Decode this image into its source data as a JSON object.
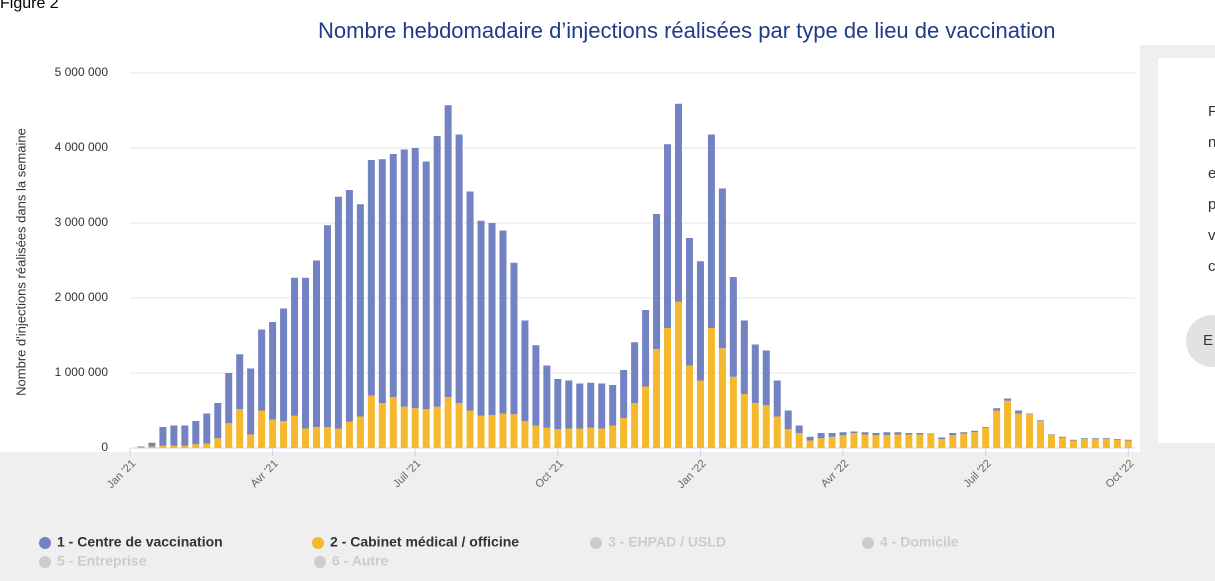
{
  "figure_label": "Figure 2",
  "chart_data": {
    "type": "stacked_bar",
    "title": "Nombre hebdomadaire d’injections réalisées par type de lieu de vaccination",
    "y_label": "Nombre d'injections réalisées dans la semaine",
    "categories": [
      "Jan '21",
      null,
      null,
      null,
      null,
      null,
      null,
      null,
      null,
      null,
      null,
      null,
      null,
      "Avr '21",
      null,
      null,
      null,
      null,
      null,
      null,
      null,
      null,
      null,
      null,
      null,
      null,
      "Juil '21",
      null,
      null,
      null,
      null,
      null,
      null,
      null,
      null,
      null,
      null,
      null,
      null,
      "Oct '21",
      null,
      null,
      null,
      null,
      null,
      null,
      null,
      null,
      null,
      null,
      null,
      null,
      "Jan '22",
      null,
      null,
      null,
      null,
      null,
      null,
      null,
      null,
      null,
      null,
      null,
      null,
      "Avr '22",
      null,
      null,
      null,
      null,
      null,
      null,
      null,
      null,
      null,
      null,
      null,
      null,
      "Juil '22",
      null,
      null,
      null,
      null,
      null,
      null,
      null,
      null,
      null,
      null,
      null,
      null,
      "Oct '22"
    ],
    "series": [
      {
        "name": "1 - Centre de vaccination",
        "color": "#7282c2",
        "values": [
          0,
          10000,
          50000,
          250000,
          270000,
          270000,
          310000,
          400000,
          470000,
          670000,
          730000,
          880000,
          1080000,
          1300000,
          1500000,
          1840000,
          2010000,
          2220000,
          2690000,
          3090000,
          3090000,
          2830000,
          3140000,
          3250000,
          3240000,
          3430000,
          3470000,
          3300000,
          3610000,
          3890000,
          3580000,
          2920000,
          2600000,
          2560000,
          2440000,
          2020000,
          1340000,
          1070000,
          830000,
          670000,
          640000,
          600000,
          600000,
          600000,
          540000,
          640000,
          810000,
          1020000,
          1800000,
          2450000,
          2640000,
          1700000,
          1590000,
          2580000,
          2130000,
          1330000,
          980000,
          780000,
          730000,
          480000,
          250000,
          100000,
          50000,
          70000,
          50000,
          40000,
          20000,
          30000,
          30000,
          40000,
          30000,
          20000,
          20000,
          0,
          20000,
          30000,
          20000,
          20000,
          10000,
          30000,
          30000,
          40000,
          10000,
          10000,
          10000,
          10000,
          10000,
          10000,
          10000,
          10000,
          10000,
          10000
        ]
      },
      {
        "name": "2 - Cabinet médical / officine",
        "color": "#f6b82c",
        "values": [
          0,
          10000,
          20000,
          30000,
          30000,
          30000,
          50000,
          60000,
          130000,
          330000,
          520000,
          180000,
          500000,
          380000,
          360000,
          430000,
          260000,
          280000,
          280000,
          260000,
          350000,
          420000,
          700000,
          600000,
          680000,
          550000,
          530000,
          520000,
          550000,
          680000,
          600000,
          500000,
          430000,
          440000,
          460000,
          450000,
          360000,
          300000,
          270000,
          250000,
          260000,
          260000,
          270000,
          260000,
          300000,
          400000,
          600000,
          820000,
          1320000,
          1600000,
          1950000,
          1100000,
          900000,
          1600000,
          1330000,
          950000,
          720000,
          600000,
          570000,
          420000,
          250000,
          200000,
          100000,
          130000,
          150000,
          170000,
          200000,
          180000,
          170000,
          170000,
          180000,
          180000,
          180000,
          200000,
          120000,
          170000,
          190000,
          210000,
          270000,
          500000,
          630000,
          460000,
          450000,
          360000,
          170000,
          140000,
          100000,
          120000,
          120000,
          120000,
          110000,
          100000
        ]
      }
    ],
    "inactive_legend": [
      "3 - EHPAD / USLD",
      "4 - Domicile",
      "5 - Entreprise",
      "6 - Autre"
    ],
    "ylim": [
      0,
      5000000
    ],
    "yticks": [
      0,
      {
        "value": 1000000,
        "label": "1 000 000"
      },
      {
        "value": 2000000,
        "label": "2 000 000"
      },
      {
        "value": 3000000,
        "label": "3 000 000"
      },
      {
        "value": 4000000,
        "label": "4 000 000"
      },
      {
        "value": 5000000,
        "label": "5 000 000"
      }
    ],
    "grid": true
  },
  "side_panel": {
    "lines": [
      "F",
      "n",
      "e",
      "p",
      "v",
      "c"
    ],
    "button": "E"
  }
}
